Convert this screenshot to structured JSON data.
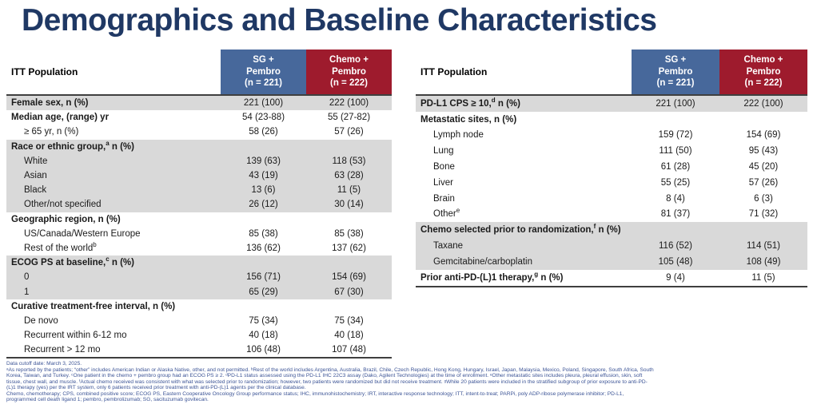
{
  "title": "Demographics and Baseline Characteristics",
  "colors": {
    "title": "#1f3864",
    "sg_pembro_header": "#47689b",
    "chemo_pembro_header": "#9e1b2d",
    "shaded_row": "#d9d9d9",
    "footnote_text": "#3c5496"
  },
  "tables": [
    {
      "corner_label": "ITT Population",
      "columns": [
        {
          "lines": [
            "SG +",
            "Pembro",
            "(n = 221)"
          ]
        },
        {
          "lines": [
            "Chemo +",
            "Pembro",
            "(n = 222)"
          ]
        }
      ],
      "rows": [
        {
          "pre": "Female sex, n (%)",
          "sup": "",
          "post": "",
          "bold": true,
          "indent": false,
          "shade": "gray",
          "values": [
            "221 (100)",
            "222 (100)"
          ]
        },
        {
          "pre": "Median age, (range) yr",
          "sup": "",
          "post": "",
          "bold": true,
          "indent": false,
          "shade": "white",
          "values": [
            "54 (23-88)",
            "55 (27-82)"
          ]
        },
        {
          "pre": "≥ 65 yr, n (%)",
          "sup": "",
          "post": "",
          "bold": false,
          "indent": true,
          "shade": "white",
          "values": [
            "58 (26)",
            "57 (26)"
          ]
        },
        {
          "pre": "Race or ethnic group,",
          "sup": "a",
          "post": " n (%)",
          "bold": true,
          "indent": false,
          "shade": "gray",
          "values": [
            "",
            ""
          ]
        },
        {
          "pre": "White",
          "sup": "",
          "post": "",
          "bold": false,
          "indent": true,
          "shade": "gray",
          "values": [
            "139 (63)",
            "118 (53)"
          ]
        },
        {
          "pre": "Asian",
          "sup": "",
          "post": "",
          "bold": false,
          "indent": true,
          "shade": "gray",
          "values": [
            "43 (19)",
            "63 (28)"
          ]
        },
        {
          "pre": "Black",
          "sup": "",
          "post": "",
          "bold": false,
          "indent": true,
          "shade": "gray",
          "values": [
            "13 (6)",
            "11 (5)"
          ]
        },
        {
          "pre": "Other/not specified",
          "sup": "",
          "post": "",
          "bold": false,
          "indent": true,
          "shade": "gray",
          "values": [
            "26 (12)",
            "30 (14)"
          ]
        },
        {
          "pre": "Geographic region, n (%)",
          "sup": "",
          "post": "",
          "bold": true,
          "indent": false,
          "shade": "white",
          "values": [
            "",
            ""
          ]
        },
        {
          "pre": "US/Canada/Western Europe",
          "sup": "",
          "post": "",
          "bold": false,
          "indent": true,
          "shade": "white",
          "values": [
            "85 (38)",
            "85 (38)"
          ]
        },
        {
          "pre": "Rest of the world",
          "sup": "b",
          "post": "",
          "bold": false,
          "indent": true,
          "shade": "white",
          "values": [
            "136 (62)",
            "137 (62)"
          ]
        },
        {
          "pre": "ECOG PS at baseline,",
          "sup": "c",
          "post": " n (%)",
          "bold": true,
          "indent": false,
          "shade": "gray",
          "values": [
            "",
            ""
          ]
        },
        {
          "pre": "0",
          "sup": "",
          "post": "",
          "bold": false,
          "indent": true,
          "shade": "gray",
          "values": [
            "156 (71)",
            "154 (69)"
          ]
        },
        {
          "pre": "1",
          "sup": "",
          "post": "",
          "bold": false,
          "indent": true,
          "shade": "gray",
          "values": [
            "65 (29)",
            "67 (30)"
          ]
        },
        {
          "pre": "Curative treatment-free interval, n (%)",
          "sup": "",
          "post": "",
          "bold": true,
          "indent": false,
          "shade": "white",
          "values": [
            "",
            ""
          ]
        },
        {
          "pre": "De novo",
          "sup": "",
          "post": "",
          "bold": false,
          "indent": true,
          "shade": "white",
          "values": [
            "75 (34)",
            "75 (34)"
          ]
        },
        {
          "pre": "Recurrent within 6-12 mo",
          "sup": "",
          "post": "",
          "bold": false,
          "indent": true,
          "shade": "white",
          "values": [
            "40 (18)",
            "40 (18)"
          ]
        },
        {
          "pre": "Recurrent > 12 mo",
          "sup": "",
          "post": "",
          "bold": false,
          "indent": true,
          "shade": "white",
          "values": [
            "106 (48)",
            "107 (48)"
          ]
        }
      ]
    },
    {
      "corner_label": "ITT Population",
      "columns": [
        {
          "lines": [
            "SG +",
            "Pembro",
            "(n = 221)"
          ]
        },
        {
          "lines": [
            "Chemo +",
            "Pembro",
            "(n = 222)"
          ]
        }
      ],
      "rows": [
        {
          "pre": "PD-L1 CPS ≥ 10,",
          "sup": "d",
          "post": " n (%)",
          "bold": true,
          "indent": false,
          "shade": "gray",
          "values": [
            "221 (100)",
            "222 (100)"
          ]
        },
        {
          "pre": "Metastatic sites, n (%)",
          "sup": "",
          "post": "",
          "bold": true,
          "indent": false,
          "shade": "white",
          "values": [
            "",
            ""
          ]
        },
        {
          "pre": "Lymph node",
          "sup": "",
          "post": "",
          "bold": false,
          "indent": true,
          "shade": "white",
          "values": [
            "159 (72)",
            "154 (69)"
          ]
        },
        {
          "pre": "Lung",
          "sup": "",
          "post": "",
          "bold": false,
          "indent": true,
          "shade": "white",
          "values": [
            "111 (50)",
            "95 (43)"
          ]
        },
        {
          "pre": "Bone",
          "sup": "",
          "post": "",
          "bold": false,
          "indent": true,
          "shade": "white",
          "values": [
            "61 (28)",
            "45 (20)"
          ]
        },
        {
          "pre": "Liver",
          "sup": "",
          "post": "",
          "bold": false,
          "indent": true,
          "shade": "white",
          "values": [
            "55 (25)",
            "57 (26)"
          ]
        },
        {
          "pre": "Brain",
          "sup": "",
          "post": "",
          "bold": false,
          "indent": true,
          "shade": "white",
          "values": [
            "8 (4)",
            "6 (3)"
          ]
        },
        {
          "pre": "Other",
          "sup": "e",
          "post": "",
          "bold": false,
          "indent": true,
          "shade": "white",
          "values": [
            "81 (37)",
            "71 (32)"
          ]
        },
        {
          "pre": "Chemo selected prior to randomization,",
          "sup": "f",
          "post": " n (%)",
          "bold": true,
          "indent": false,
          "shade": "gray",
          "values": [
            "",
            ""
          ]
        },
        {
          "pre": "Taxane",
          "sup": "",
          "post": "",
          "bold": false,
          "indent": true,
          "shade": "gray",
          "values": [
            "116 (52)",
            "114 (51)"
          ]
        },
        {
          "pre": "Gemcitabine/carboplatin",
          "sup": "",
          "post": "",
          "bold": false,
          "indent": true,
          "shade": "gray",
          "values": [
            "105 (48)",
            "108 (49)"
          ]
        },
        {
          "pre": "Prior anti-PD-(L)1 therapy,",
          "sup": "g",
          "post": " n (%)",
          "bold": true,
          "indent": false,
          "shade": "white",
          "values": [
            "9 (4)",
            "11 (5)"
          ]
        }
      ]
    }
  ],
  "footnotes": [
    "Data cutoff date: March 3, 2025.",
    "ᵃAs reported by the patients; “other” includes American Indian or Alaska Native, other, and not permitted. ᵇRest of the world includes Argentina, Australia, Brazil, Chile, Czech Republic, Hong Kong, Hungary, Israel, Japan, Malaysia, Mexico, Poland, Singapore, South Africa, South",
    "Korea, Taiwan, and Turkey. ᶜOne patient in the chemo + pembro group had an ECOG PS ≥ 2. ᵈPD-L1 status assessed using the PD-L1 IHC 22C3 assay (Dako, Agilent Technologies) at the time of enrollment. ᵉOther metastatic sites includes pleura, pleural effusion, skin, soft",
    "tissue, chest wall, and muscle. ᶠActual chemo received was consistent with what was selected prior to randomization; however, two patients were randomized but did not receive treatment. ᵍWhile 20 patients were included in the stratified subgroup of prior exposure to anti-PD-",
    "(L)1 therapy (yes) per the IRT system, only 6 patients received prior treatment with anti-PD-(L)1 agents per the clinical database.",
    "Chemo, chemotherapy; CPS, combined positive score; ECOG PS, Eastern Cooperative Oncology Group performance status; IHC, immunohistochemistry; IRT, interactive response technology; ITT, intent-to-treat; PARPi, poly ADP-ribose polymerase inhibitor; PD-L1,",
    "programmed cell death ligand 1; pembro, pembrolizumab; SG, sacituzumab govitecan."
  ]
}
